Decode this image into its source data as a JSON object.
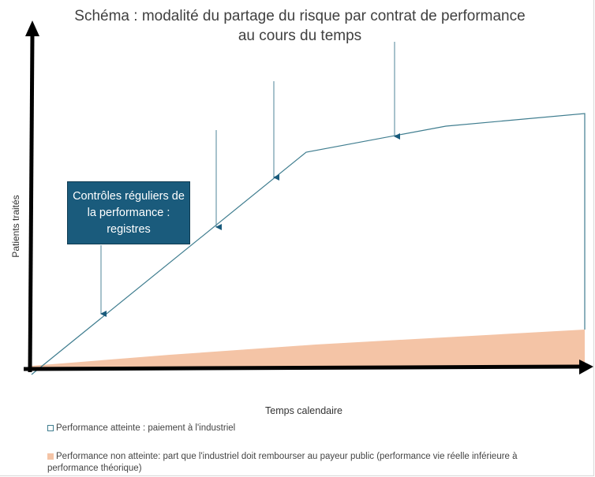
{
  "title_line1": "Schéma : modalité du partage du risque par contrat de performance",
  "title_line2": "au cours du temps",
  "y_axis_label": "Patients traités",
  "x_axis_label": "Temps calendaire",
  "callout": "Contrôles réguliers de la performance : registres",
  "legend": [
    {
      "label": "Performance atteinte : paiement à l'industriel",
      "color": "#3f7d8f"
    },
    {
      "label": "Performance non atteinte: part que l'industriel doit rembourser au payeur public (performance vie réelle inférieure à performance théorique)",
      "color": "#f4c4a6"
    }
  ],
  "colors": {
    "line": "#3f7d8f",
    "area": "#f4c4a6",
    "box": "#1a5b7c",
    "axis": "#000000"
  }
}
